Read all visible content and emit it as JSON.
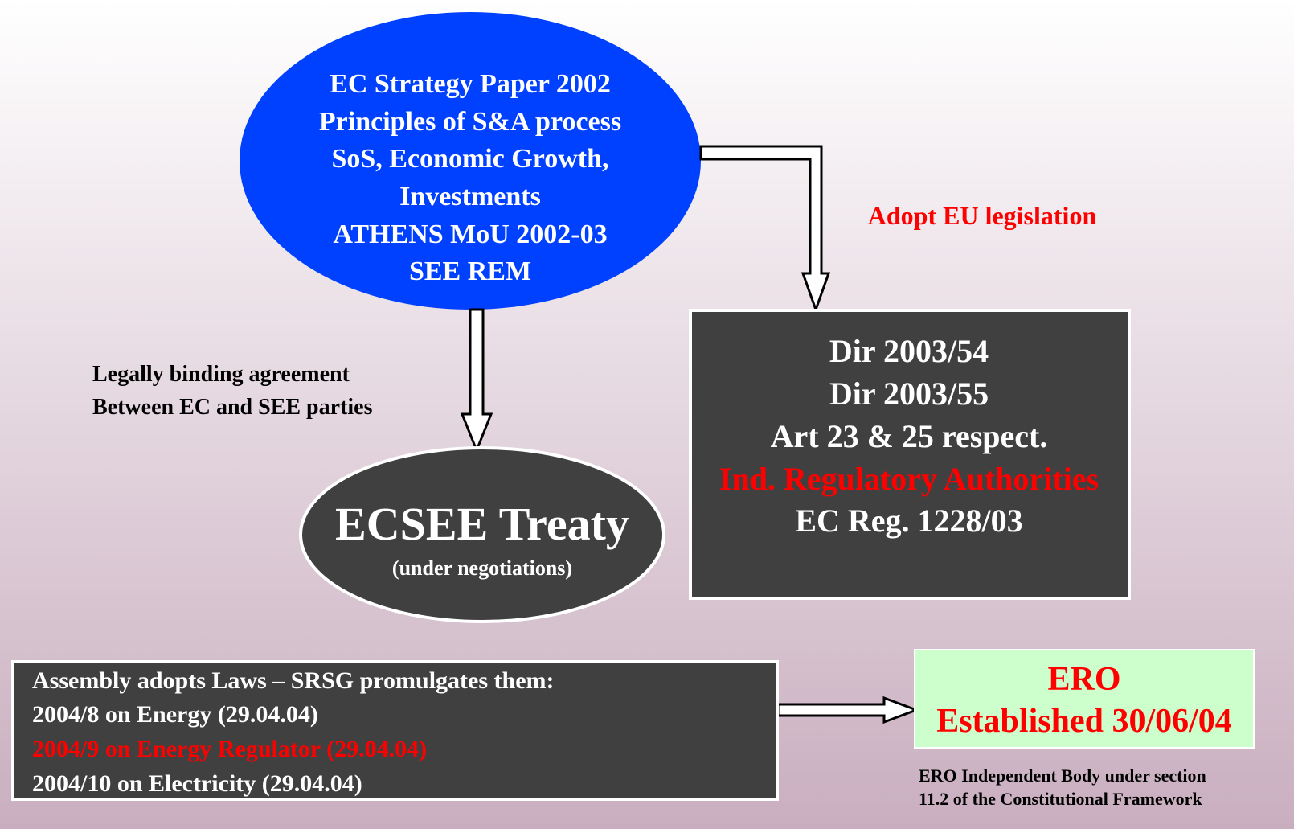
{
  "strategy": {
    "lines": [
      "EC Strategy Paper 2002",
      "Principles of S&A process",
      "SoS, Economic Growth,",
      "Investments",
      "ATHENS MoU 2002-03",
      "SEE REM"
    ]
  },
  "adopt_label": "Adopt EU legislation",
  "directives": {
    "lines": [
      "Dir 2003/54",
      "Dir 2003/55",
      "Art 23 & 25 respect.",
      "Ind. Regulatory Authorities",
      "EC Reg. 1228/03"
    ]
  },
  "agreement_label": {
    "lines": [
      "Legally binding agreement",
      "Between EC and SEE parties"
    ]
  },
  "treaty": {
    "title": "ECSEE Treaty",
    "subtitle": "(under negotiations)"
  },
  "laws": {
    "lines": [
      "Assembly adopts Laws – SRSG promulgates them:",
      "2004/8 on Energy (29.04.04)",
      "2004/9 on Energy Regulator (29.04.04)",
      "2004/10 on Electricity (29.04.04)"
    ]
  },
  "ero": {
    "lines": [
      "ERO",
      "Established 30/06/04"
    ],
    "note": [
      "ERO Independent Body under section",
      "11.2 of the Constitutional Framework"
    ]
  }
}
